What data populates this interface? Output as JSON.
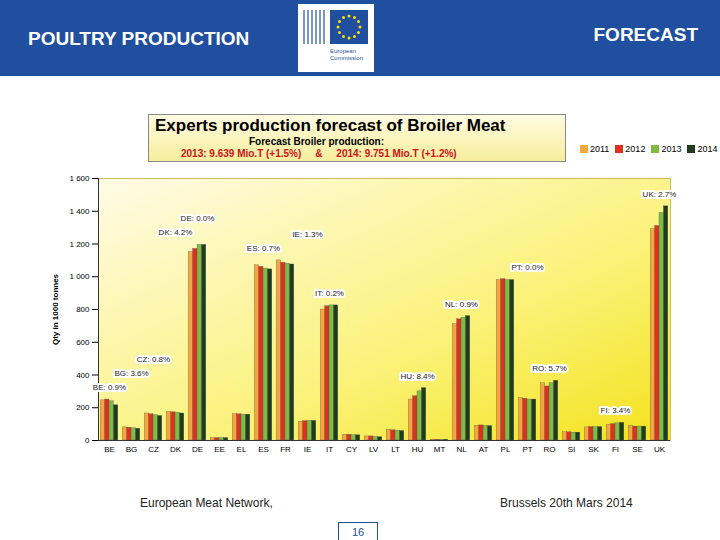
{
  "header": {
    "left": "POULTRY PRODUCTION",
    "right": "FORECAST",
    "logo": "European Commission"
  },
  "chart_data": {
    "type": "bar",
    "title": "Experts production forecast of Broiler Meat",
    "subtitle": [
      "Forecast Broiler production:",
      "2013: 9.639 Mio.T (+1.5%)     &     2014: 9.751 Mio.T (+1.2%)"
    ],
    "ylabel": "Qty in 1000 tonnes",
    "categories": [
      "BE",
      "BG",
      "CZ",
      "DK",
      "DE",
      "EE",
      "EL",
      "ES",
      "FR",
      "IE",
      "IT",
      "CY",
      "LV",
      "LT",
      "HU",
      "MT",
      "NL",
      "AT",
      "PL",
      "PT",
      "RO",
      "SI",
      "SK",
      "FI",
      "SE",
      "UK"
    ],
    "series": [
      {
        "name": "2011",
        "color": "#f2a83e",
        "values": [
          245,
          80,
          165,
          175,
          1150,
          15,
          160,
          1070,
          1100,
          115,
          800,
          35,
          25,
          65,
          250,
          5,
          710,
          90,
          980,
          260,
          350,
          50,
          80,
          95,
          90,
          1290
        ]
      },
      {
        "name": "2012",
        "color": "#e0301e",
        "values": [
          250,
          78,
          160,
          172,
          1170,
          15,
          160,
          1060,
          1085,
          118,
          820,
          35,
          25,
          62,
          270,
          5,
          740,
          92,
          985,
          255,
          330,
          50,
          82,
          100,
          85,
          1310
        ]
      },
      {
        "name": "2013",
        "color": "#7dbb42",
        "values": [
          240,
          75,
          155,
          170,
          1195,
          15,
          158,
          1050,
          1080,
          120,
          825,
          33,
          22,
          60,
          300,
          5,
          750,
          90,
          980,
          250,
          350,
          48,
          82,
          105,
          85,
          1390
        ]
      },
      {
        "name": "2014",
        "color": "#1e3d1e",
        "values": [
          215,
          72,
          150,
          165,
          1195,
          15,
          158,
          1045,
          1075,
          120,
          825,
          32,
          20,
          58,
          320,
          5,
          760,
          88,
          980,
          250,
          365,
          48,
          82,
          108,
          85,
          1430
        ]
      }
    ],
    "ylim": [
      0,
      1600
    ],
    "yticks": [
      0,
      200,
      400,
      600,
      800,
      {
        "value": 1000,
        "label": "1 000"
      },
      {
        "value": 1200,
        "label": "1 200"
      },
      {
        "value": 1400,
        "label": "1 400"
      },
      {
        "value": 1600,
        "label": "1 600"
      }
    ],
    "grid": false,
    "legend": "top-right",
    "annotations": [
      {
        "x": "BE",
        "text": "BE: 0.9%"
      },
      {
        "x": "BG",
        "text": "BG: 3.6%"
      },
      {
        "x": "CZ",
        "text": "CZ: 0.8%"
      },
      {
        "x": "DK",
        "text": "DK: 4.2%"
      },
      {
        "x": "DE",
        "text": "DE: 0.0%"
      },
      {
        "x": "ES",
        "text": "ES: 0.7%"
      },
      {
        "x": "IE",
        "text": "IE: 1.3%"
      },
      {
        "x": "IT",
        "text": "IT: 0.2%"
      },
      {
        "x": "HU",
        "text": "HU: 8.4%"
      },
      {
        "x": "NL",
        "text": "NL: 0.9%"
      },
      {
        "x": "PT",
        "text": "PT: 0.0%"
      },
      {
        "x": "RO",
        "text": "RO: 5.7%"
      },
      {
        "x": "FI",
        "text": "FI: 3.4%"
      },
      {
        "x": "UK",
        "text": "UK: 2.7%"
      }
    ]
  },
  "footer": {
    "left": "European Meat Network,",
    "right": "Brussels 20th Mars 2014",
    "page": 16
  }
}
